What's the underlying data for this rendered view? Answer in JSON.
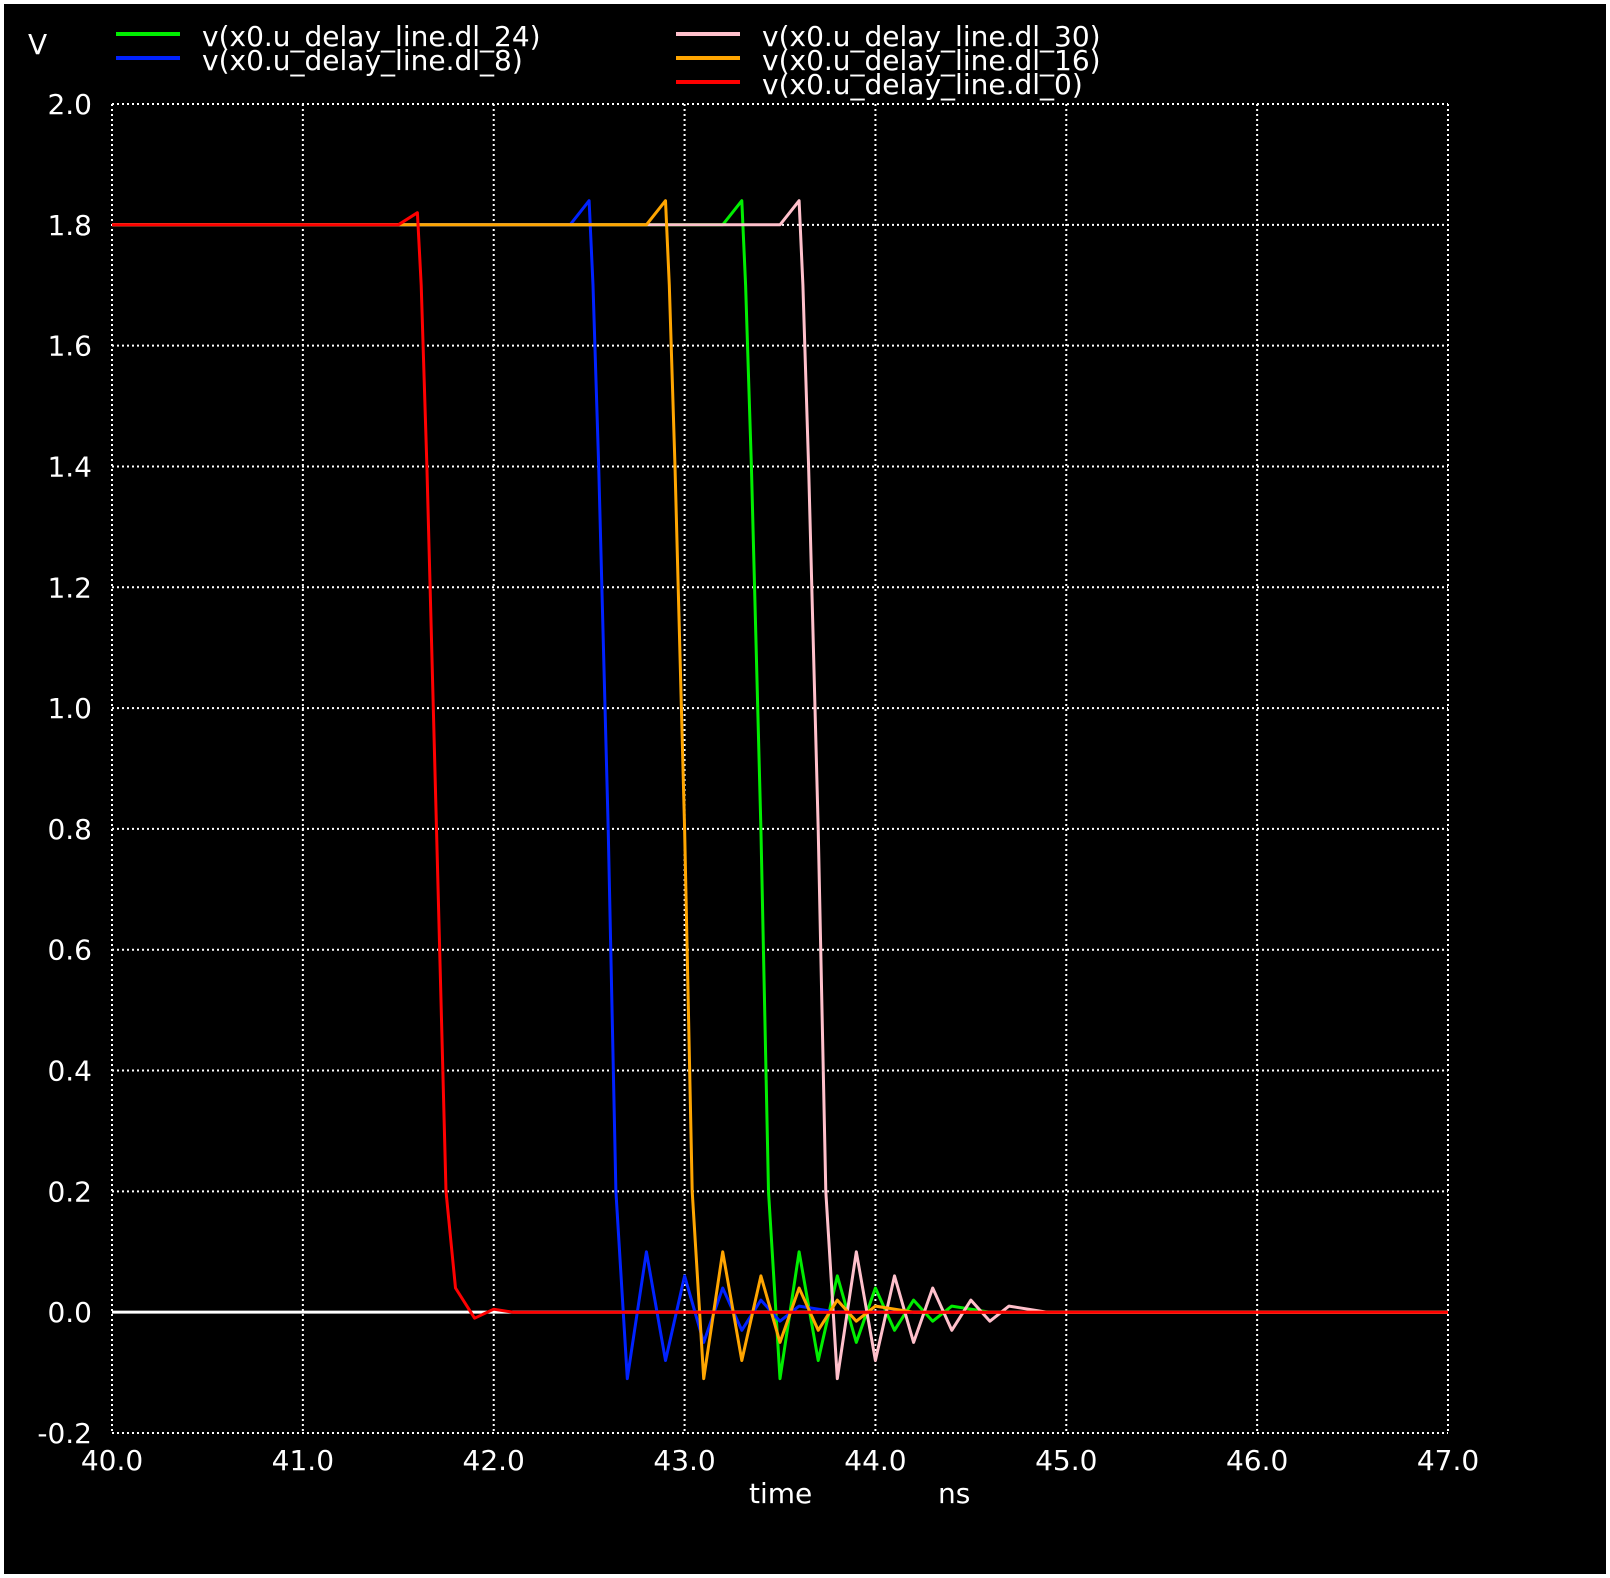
{
  "chart_data": {
    "type": "line",
    "ylabel_unit": "V",
    "xlabel": "time",
    "xunit": "ns",
    "xlim": [
      40.0,
      47.0
    ],
    "ylim": [
      -0.2,
      2.0
    ],
    "xticks": [
      "40.0",
      "41.0",
      "42.0",
      "43.0",
      "44.0",
      "45.0",
      "46.0",
      "47.0"
    ],
    "yticks": [
      "-0.2",
      "0.0",
      "0.2",
      "0.4",
      "0.6",
      "0.8",
      "1.0",
      "1.2",
      "1.4",
      "1.6",
      "1.8",
      "2.0"
    ],
    "grid": true,
    "legend_position": "top",
    "reference_line": {
      "y": 0.0,
      "color": "#ffffff"
    },
    "series": [
      {
        "name": "v(x0.u_delay_line.dl_24)",
        "color": "#00ee00",
        "points": [
          [
            40.0,
            1.8
          ],
          [
            43.2,
            1.8
          ],
          [
            43.3,
            1.84
          ],
          [
            43.32,
            1.7
          ],
          [
            43.35,
            1.4
          ],
          [
            43.4,
            0.8
          ],
          [
            43.44,
            0.2
          ],
          [
            43.5,
            -0.11
          ],
          [
            43.6,
            0.1
          ],
          [
            43.7,
            -0.08
          ],
          [
            43.8,
            0.06
          ],
          [
            43.9,
            -0.05
          ],
          [
            44.0,
            0.04
          ],
          [
            44.1,
            -0.03
          ],
          [
            44.2,
            0.02
          ],
          [
            44.3,
            -0.015
          ],
          [
            44.4,
            0.01
          ],
          [
            44.6,
            0.0
          ],
          [
            47.0,
            0.0
          ]
        ]
      },
      {
        "name": "v(x0.u_delay_line.dl_8)",
        "color": "#0022ff",
        "points": [
          [
            40.0,
            1.8
          ],
          [
            42.4,
            1.8
          ],
          [
            42.5,
            1.84
          ],
          [
            42.52,
            1.7
          ],
          [
            42.55,
            1.4
          ],
          [
            42.6,
            0.8
          ],
          [
            42.64,
            0.2
          ],
          [
            42.7,
            -0.11
          ],
          [
            42.8,
            0.1
          ],
          [
            42.9,
            -0.08
          ],
          [
            43.0,
            0.06
          ],
          [
            43.1,
            -0.05
          ],
          [
            43.2,
            0.04
          ],
          [
            43.3,
            -0.03
          ],
          [
            43.4,
            0.02
          ],
          [
            43.5,
            -0.015
          ],
          [
            43.6,
            0.01
          ],
          [
            43.8,
            0.0
          ],
          [
            47.0,
            0.0
          ]
        ]
      },
      {
        "name": "v(x0.u_delay_line.dl_30)",
        "color": "#ffc0cb",
        "points": [
          [
            40.0,
            1.8
          ],
          [
            43.5,
            1.8
          ],
          [
            43.6,
            1.84
          ],
          [
            43.62,
            1.7
          ],
          [
            43.65,
            1.4
          ],
          [
            43.7,
            0.8
          ],
          [
            43.74,
            0.2
          ],
          [
            43.8,
            -0.11
          ],
          [
            43.9,
            0.1
          ],
          [
            44.0,
            -0.08
          ],
          [
            44.1,
            0.06
          ],
          [
            44.2,
            -0.05
          ],
          [
            44.3,
            0.04
          ],
          [
            44.4,
            -0.03
          ],
          [
            44.5,
            0.02
          ],
          [
            44.6,
            -0.015
          ],
          [
            44.7,
            0.01
          ],
          [
            44.9,
            0.0
          ],
          [
            47.0,
            0.0
          ]
        ]
      },
      {
        "name": "v(x0.u_delay_line.dl_16)",
        "color": "#ffa500",
        "points": [
          [
            40.0,
            1.8
          ],
          [
            42.8,
            1.8
          ],
          [
            42.9,
            1.84
          ],
          [
            42.92,
            1.7
          ],
          [
            42.95,
            1.4
          ],
          [
            43.0,
            0.8
          ],
          [
            43.04,
            0.2
          ],
          [
            43.1,
            -0.11
          ],
          [
            43.2,
            0.1
          ],
          [
            43.3,
            -0.08
          ],
          [
            43.4,
            0.06
          ],
          [
            43.5,
            -0.05
          ],
          [
            43.6,
            0.04
          ],
          [
            43.7,
            -0.03
          ],
          [
            43.8,
            0.02
          ],
          [
            43.9,
            -0.015
          ],
          [
            44.0,
            0.01
          ],
          [
            44.2,
            0.0
          ],
          [
            47.0,
            0.0
          ]
        ]
      },
      {
        "name": "v(x0.u_delay_line.dl_0)",
        "color": "#ff0000",
        "points": [
          [
            40.0,
            1.8
          ],
          [
            41.5,
            1.8
          ],
          [
            41.6,
            1.82
          ],
          [
            41.62,
            1.7
          ],
          [
            41.65,
            1.4
          ],
          [
            41.7,
            0.8
          ],
          [
            41.75,
            0.2
          ],
          [
            41.8,
            0.04
          ],
          [
            41.9,
            -0.01
          ],
          [
            42.0,
            0.005
          ],
          [
            42.1,
            0.0
          ],
          [
            47.0,
            0.0
          ]
        ]
      }
    ]
  }
}
